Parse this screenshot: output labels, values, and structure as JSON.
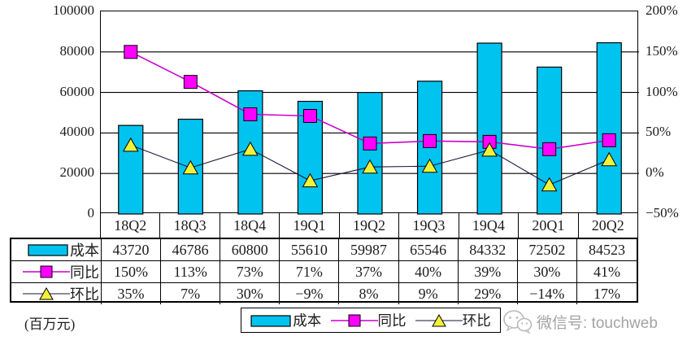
{
  "chart_data": {
    "type": "bar",
    "subtype": "combo-bar-line-dual-axis",
    "title": "",
    "categories": [
      "18Q2",
      "18Q3",
      "18Q4",
      "19Q1",
      "19Q2",
      "19Q3",
      "19Q4",
      "20Q1",
      "20Q2"
    ],
    "series": [
      {
        "name": "成本",
        "type": "bar",
        "axis": "left",
        "values": [
          43720,
          46786,
          60800,
          55610,
          59987,
          65546,
          84332,
          72502,
          84523
        ],
        "color": "#00C3EF",
        "border_color": "#000000"
      },
      {
        "name": "同比",
        "type": "line",
        "axis": "right",
        "values": [
          150,
          113,
          73,
          71,
          37,
          40,
          39,
          30,
          41
        ],
        "labels": [
          "150%",
          "113%",
          "73%",
          "71%",
          "37%",
          "40%",
          "39%",
          "30%",
          "41%"
        ],
        "line_color": "#CC00CC",
        "marker": "square",
        "marker_color": "#FF00FF"
      },
      {
        "name": "环比",
        "type": "line",
        "axis": "right",
        "values": [
          35,
          7,
          30,
          -9,
          8,
          9,
          29,
          -14,
          17
        ],
        "labels": [
          "35%",
          "7%",
          "30%",
          "−9%",
          "8%",
          "9%",
          "29%",
          "−14%",
          "17%"
        ],
        "line_color": "#16163A",
        "marker": "triangle",
        "marker_color": "#F2F23A"
      }
    ],
    "left_axis": {
      "min": 0,
      "max": 100000,
      "ticks": [
        "100000",
        "80000",
        "60000",
        "40000",
        "20000",
        "0"
      ]
    },
    "right_axis": {
      "min": -50,
      "max": 200,
      "ticks": [
        "200%",
        "150%",
        "100%",
        "50%",
        "0%",
        "−50%"
      ]
    },
    "grid": "horizontal",
    "legend_position": "bottom-center",
    "unit_label": "(百万元)"
  },
  "table": {
    "row_labels": [
      "成本",
      "同比",
      "环比"
    ],
    "rows": [
      [
        "43720",
        "46786",
        "60800",
        "55610",
        "59987",
        "65546",
        "84332",
        "72502",
        "84523"
      ],
      [
        "150%",
        "113%",
        "73%",
        "71%",
        "37%",
        "40%",
        "39%",
        "30%",
        "41%"
      ],
      [
        "35%",
        "7%",
        "30%",
        "−9%",
        "8%",
        "9%",
        "29%",
        "−14%",
        "17%"
      ]
    ]
  },
  "footer": {
    "wechat_label": "微信号: touchweb"
  }
}
